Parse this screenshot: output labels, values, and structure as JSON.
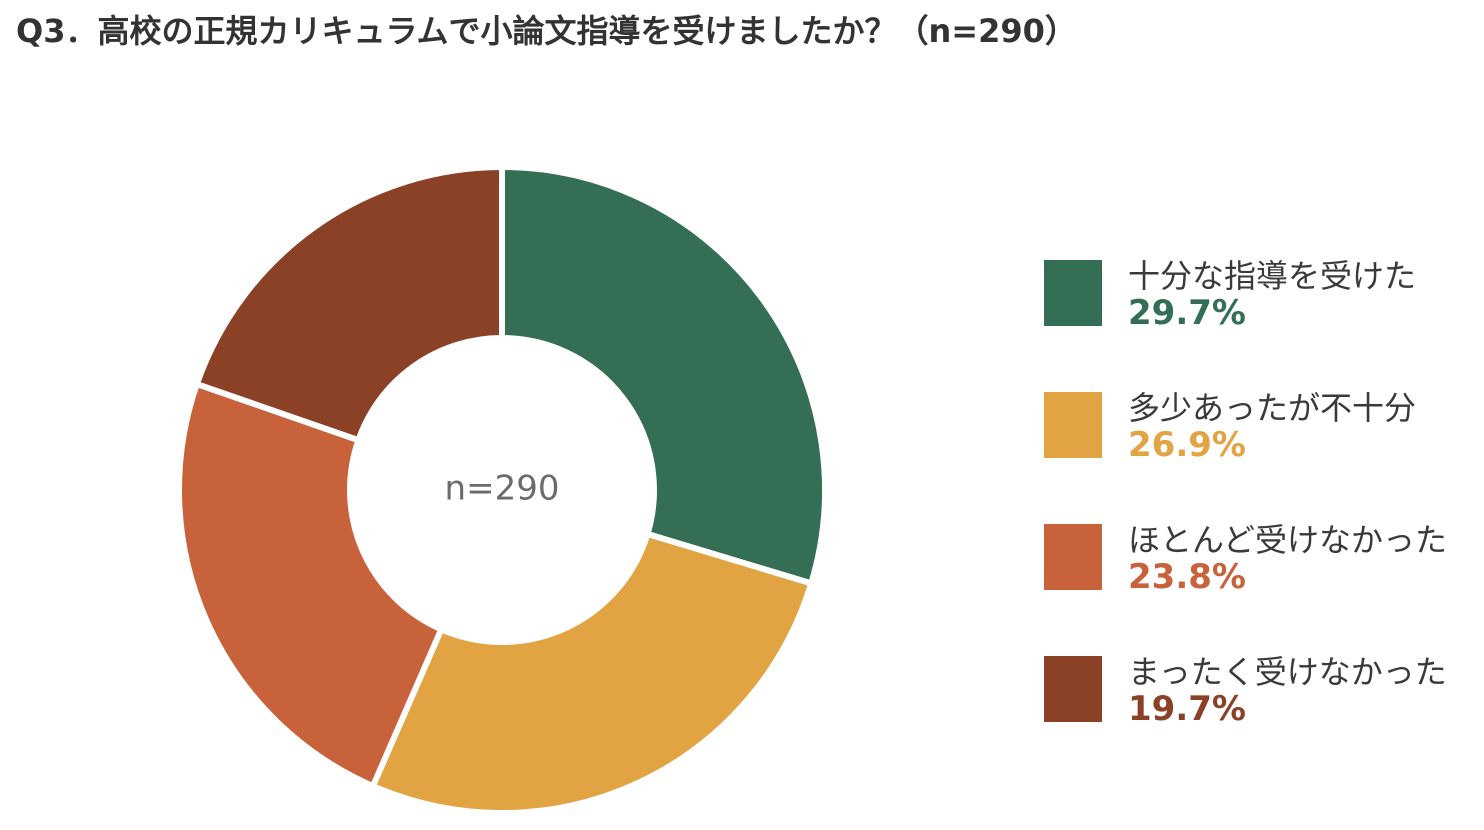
{
  "chart_data": {
    "type": "pie",
    "donut": true,
    "title": "Q3．高校の正規カリキュラムで小論文指導を受けましたか？（n=290）",
    "center_label": "n=290",
    "legend_position": "right",
    "slices": [
      {
        "label": "十分な指導を受けた",
        "value": 29.7,
        "value_label": "29.7%",
        "color": "#336e55"
      },
      {
        "label": "多少あったが不十分",
        "value": 26.9,
        "value_label": "26.9%",
        "color": "#e2a443"
      },
      {
        "label": "ほとんど受けなかった",
        "value": 23.8,
        "value_label": "23.8%",
        "color": "#c8623b"
      },
      {
        "label": "まったく受けなかった",
        "value": 19.7,
        "value_label": "19.7%",
        "color": "#8b4126"
      }
    ]
  }
}
